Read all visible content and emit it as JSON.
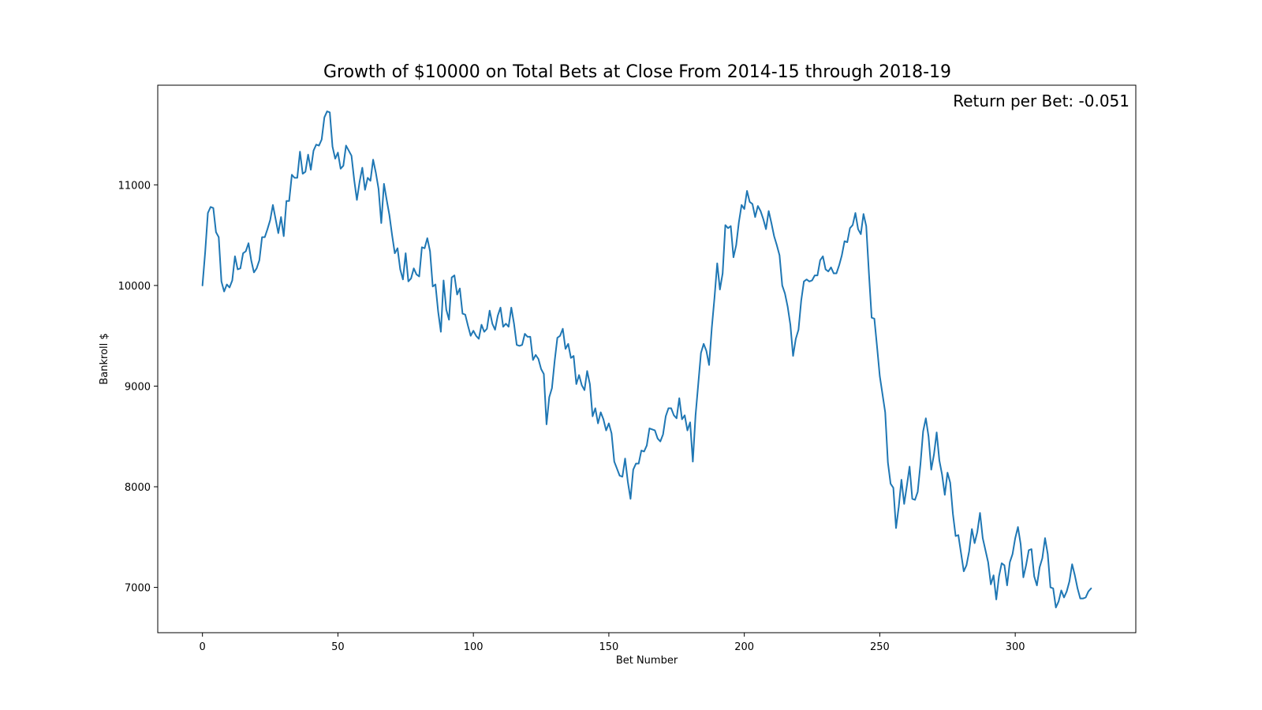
{
  "chart_data": {
    "type": "line",
    "title": "Growth of $10000 on Total Bets at Close From 2014-15 through 2018-19",
    "xlabel": "Bet Number",
    "ylabel": "Bankroll $",
    "annotation": "Return per Bet: -0.051",
    "xlim": [
      -16.5,
      344.5
    ],
    "ylim": [
      6550,
      11990
    ],
    "xticks": [
      0,
      50,
      100,
      150,
      200,
      250,
      300
    ],
    "yticks": [
      7000,
      8000,
      9000,
      10000,
      11000
    ],
    "grid": false,
    "series": [
      {
        "color": "#1f77b4",
        "x": [
          0,
          1,
          2,
          3,
          4,
          5,
          6,
          7,
          8,
          9,
          10,
          11,
          12,
          13,
          14,
          15,
          16,
          17,
          18,
          19,
          20,
          21,
          22,
          23,
          24,
          25,
          26,
          27,
          28,
          29,
          30,
          31,
          32,
          33,
          34,
          35,
          36,
          37,
          38,
          39,
          40,
          41,
          42,
          43,
          44,
          45,
          46,
          47,
          48,
          49,
          50,
          51,
          52,
          53,
          54,
          55,
          56,
          57,
          58,
          59,
          60,
          61,
          62,
          63,
          64,
          65,
          66,
          67,
          68,
          69,
          70,
          71,
          72,
          73,
          74,
          75,
          76,
          77,
          78,
          79,
          80,
          81,
          82,
          83,
          84,
          85,
          86,
          87,
          88,
          89,
          90,
          91,
          92,
          93,
          94,
          95,
          96,
          97,
          98,
          99,
          100,
          101,
          102,
          103,
          104,
          105,
          106,
          107,
          108,
          109,
          110,
          111,
          112,
          113,
          114,
          115,
          116,
          117,
          118,
          119,
          120,
          121,
          122,
          123,
          124,
          125,
          126,
          127,
          128,
          129,
          130,
          131,
          132,
          133,
          134,
          135,
          136,
          137,
          138,
          139,
          140,
          141,
          142,
          143,
          144,
          145,
          146,
          147,
          148,
          149,
          150,
          151,
          152,
          153,
          154,
          155,
          156,
          157,
          158,
          159,
          160,
          161,
          162,
          163,
          164,
          165,
          166,
          167,
          168,
          169,
          170,
          171,
          172,
          173,
          174,
          175,
          176,
          177,
          178,
          179,
          180,
          181,
          182,
          183,
          184,
          185,
          186,
          187,
          188,
          189,
          190,
          191,
          192,
          193,
          194,
          195,
          196,
          197,
          198,
          199,
          200,
          201,
          202,
          203,
          204,
          205,
          206,
          207,
          208,
          209,
          210,
          211,
          212,
          213,
          214,
          215,
          216,
          217,
          218,
          219,
          220,
          221,
          222,
          223,
          224,
          225,
          226,
          227,
          228,
          229,
          230,
          231,
          232,
          233,
          234,
          235,
          236,
          237,
          238,
          239,
          240,
          241,
          242,
          243,
          244,
          245,
          246,
          247,
          248,
          249,
          250,
          251,
          252,
          253,
          254,
          255,
          256,
          257,
          258,
          259,
          260,
          261,
          262,
          263,
          264,
          265,
          266,
          267,
          268,
          269,
          270,
          271,
          272,
          273,
          274,
          275,
          276,
          277,
          278,
          279,
          280,
          281,
          282,
          283,
          284,
          285,
          286,
          287,
          288,
          289,
          290,
          291,
          292,
          293,
          294,
          295,
          296,
          297,
          298,
          299,
          300,
          301,
          302,
          303,
          304,
          305,
          306,
          307,
          308,
          309,
          310,
          311,
          312,
          313,
          314,
          315,
          316,
          317,
          318,
          319,
          320,
          321,
          322,
          323,
          324,
          325,
          326,
          327,
          328
        ],
        "y": [
          10000,
          10330,
          10720,
          10780,
          10770,
          10530,
          10480,
          10040,
          9940,
          10010,
          9980,
          10050,
          10290,
          10160,
          10170,
          10320,
          10340,
          10420,
          10250,
          10130,
          10170,
          10250,
          10480,
          10480,
          10560,
          10650,
          10800,
          10660,
          10520,
          10680,
          10490,
          10840,
          10840,
          11100,
          11070,
          11070,
          11330,
          11110,
          11130,
          11300,
          11150,
          11340,
          11400,
          11390,
          11450,
          11670,
          11730,
          11720,
          11380,
          11260,
          11320,
          11160,
          11190,
          11390,
          11340,
          11290,
          11050,
          10850,
          11030,
          11170,
          10950,
          11070,
          11040,
          11250,
          11120,
          10960,
          10620,
          11010,
          10850,
          10700,
          10500,
          10320,
          10370,
          10160,
          10060,
          10320,
          10040,
          10070,
          10170,
          10110,
          10090,
          10380,
          10370,
          10470,
          10340,
          9990,
          10010,
          9740,
          9540,
          10050,
          9760,
          9660,
          10080,
          10100,
          9910,
          9970,
          9720,
          9710,
          9600,
          9500,
          9550,
          9500,
          9470,
          9610,
          9540,
          9570,
          9750,
          9620,
          9560,
          9700,
          9780,
          9590,
          9620,
          9590,
          9780,
          9620,
          9410,
          9400,
          9410,
          9520,
          9490,
          9490,
          9260,
          9310,
          9270,
          9170,
          9120,
          8620,
          8890,
          8980,
          9250,
          9480,
          9500,
          9570,
          9370,
          9420,
          9280,
          9300,
          9020,
          9110,
          9010,
          8960,
          9150,
          9020,
          8700,
          8780,
          8630,
          8740,
          8670,
          8560,
          8630,
          8530,
          8250,
          8180,
          8110,
          8100,
          8280,
          8050,
          7880,
          8170,
          8230,
          8230,
          8360,
          8350,
          8410,
          8580,
          8570,
          8560,
          8480,
          8450,
          8520,
          8700,
          8780,
          8780,
          8710,
          8680,
          8880,
          8670,
          8710,
          8560,
          8640,
          8250,
          8710,
          9020,
          9330,
          9420,
          9350,
          9210,
          9580,
          9880,
          10220,
          9960,
          10120,
          10600,
          10570,
          10590,
          10280,
          10400,
          10630,
          10800,
          10760,
          10940,
          10830,
          10810,
          10680,
          10790,
          10740,
          10660,
          10560,
          10740,
          10620,
          10490,
          10400,
          10300,
          10000,
          9920,
          9790,
          9610,
          9300,
          9470,
          9560,
          9850,
          10040,
          10060,
          10040,
          10050,
          10100,
          10100,
          10250,
          10290,
          10160,
          10140,
          10180,
          10120,
          10120,
          10200,
          10300,
          10440,
          10430,
          10570,
          10600,
          10720,
          10560,
          10510,
          10710,
          10590,
          10120,
          9680,
          9670,
          9390,
          9100,
          8920,
          8740,
          8240,
          8030,
          7990,
          7590,
          7800,
          8070,
          7830,
          8010,
          8200,
          7880,
          7870,
          7950,
          8220,
          8550,
          8680,
          8500,
          8170,
          8320,
          8540,
          8260,
          8120,
          7920,
          8140,
          8040,
          7730,
          7510,
          7520,
          7340,
          7160,
          7220,
          7360,
          7580,
          7440,
          7550,
          7740,
          7490,
          7370,
          7250,
          7030,
          7120,
          6880,
          7110,
          7240,
          7220,
          7020,
          7250,
          7330,
          7490,
          7600,
          7430,
          7100,
          7220,
          7370,
          7380,
          7110,
          7020,
          7200,
          7290,
          7490,
          7330,
          7000,
          6990,
          6800,
          6860,
          6970,
          6900,
          6960,
          7060,
          7230,
          7120,
          6990,
          6890,
          6890,
          6900,
          6960,
          6990
        ]
      }
    ]
  }
}
